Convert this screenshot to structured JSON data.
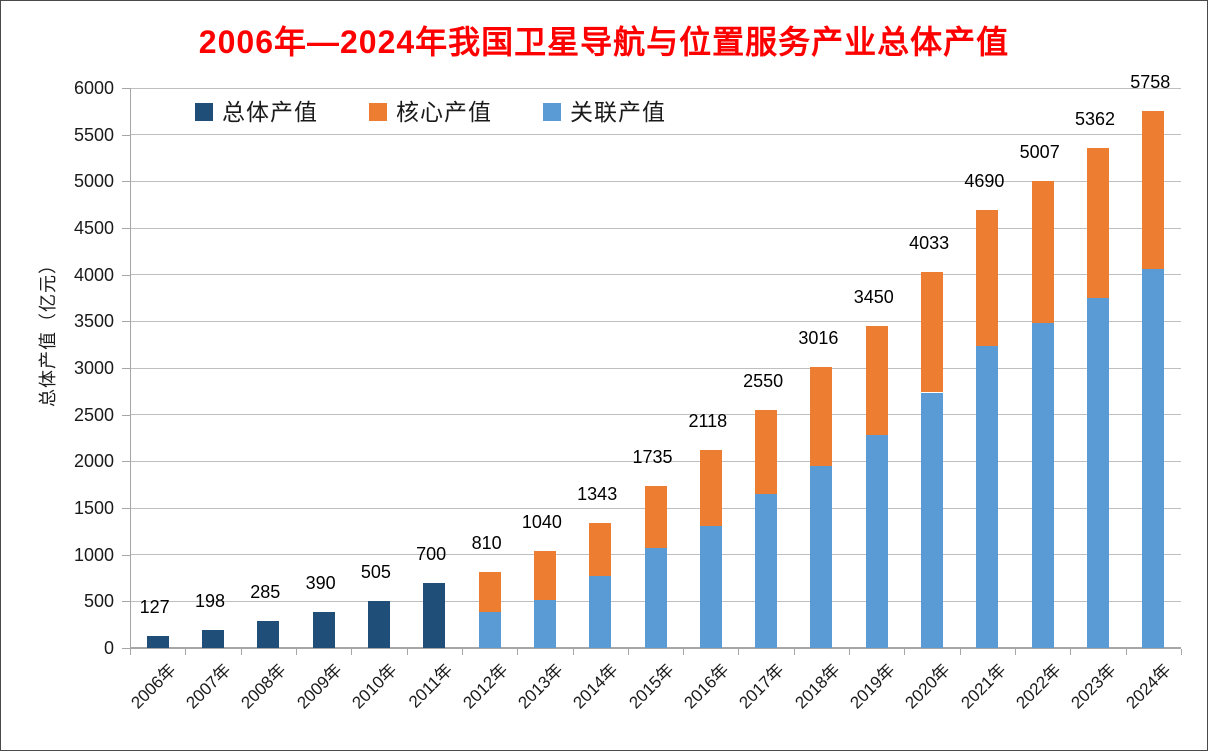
{
  "title": {
    "text": "2006年—2024年我国卫星导航与位置服务产业总体产值",
    "color": "#FF0000"
  },
  "legend": {
    "items": [
      {
        "key": "total",
        "label": "总体产值",
        "color": "#1F4E79"
      },
      {
        "key": "core",
        "label": "核心产值",
        "color": "#ED7D31"
      },
      {
        "key": "associated",
        "label": "关联产值",
        "color": "#5B9BD5"
      }
    ]
  },
  "colors": {
    "title": "#FF0000",
    "dark_blue": "#1F4E79",
    "orange": "#ED7D31",
    "light_blue": "#5B9BD5",
    "gridline": "#BFBFBF",
    "axis": "#A6A6A6"
  },
  "chart_data": {
    "type": "bar",
    "stacked": true,
    "title": "2006年—2024年我国卫星导航与位置服务产业总体产值",
    "xlabel": "",
    "ylabel": "总体产值（亿元）",
    "ylim": [
      0,
      6000
    ],
    "ytick_step": 500,
    "y_ticks": [
      "0",
      "500",
      "1000",
      "1500",
      "2000",
      "2500",
      "3000",
      "3500",
      "4000",
      "4500",
      "5000",
      "5500",
      "6000"
    ],
    "grid": true,
    "legend_position": "top-left-inside",
    "legend_order": [
      "总体产值",
      "核心产值",
      "关联产值"
    ],
    "categories": [
      "2006年",
      "2007年",
      "2008年",
      "2009年",
      "2010年",
      "2011年",
      "2012年",
      "2013年",
      "2014年",
      "2015年",
      "2016年",
      "2017年",
      "2018年",
      "2019年",
      "2020年",
      "2021年",
      "2022年",
      "2023年",
      "2024年"
    ],
    "totals": [
      127,
      198,
      285,
      390,
      505,
      700,
      810,
      1040,
      1343,
      1735,
      2118,
      2550,
      3016,
      3450,
      4033,
      4690,
      5007,
      5362,
      5758
    ],
    "total_labels": [
      "127",
      "198",
      "285",
      "390",
      "505",
      "700",
      "810",
      "1040",
      "1343",
      "1735",
      "2118",
      "2550",
      "3016",
      "3450",
      "4033",
      "4690",
      "5007",
      "5362",
      "5758"
    ],
    "series": [
      {
        "name": "总体产值",
        "key": "total",
        "color": "#1F4E79",
        "values": [
          127,
          198,
          285,
          390,
          505,
          700,
          null,
          null,
          null,
          null,
          null,
          null,
          null,
          null,
          null,
          null,
          null,
          null,
          null
        ]
      },
      {
        "name": "关联产值",
        "key": "associated",
        "color": "#5B9BD5",
        "values": [
          null,
          null,
          null,
          null,
          null,
          null,
          390,
          510,
          770,
          1075,
          1310,
          1648,
          1947,
          2284,
          2738,
          3236,
          3480,
          3751,
          4059
        ]
      },
      {
        "name": "核心产值",
        "key": "core",
        "color": "#ED7D31",
        "values": [
          null,
          null,
          null,
          null,
          null,
          null,
          420,
          530,
          573,
          660,
          808,
          902,
          1069,
          1166,
          1295,
          1454,
          1527,
          1611,
          1699
        ]
      }
    ]
  }
}
